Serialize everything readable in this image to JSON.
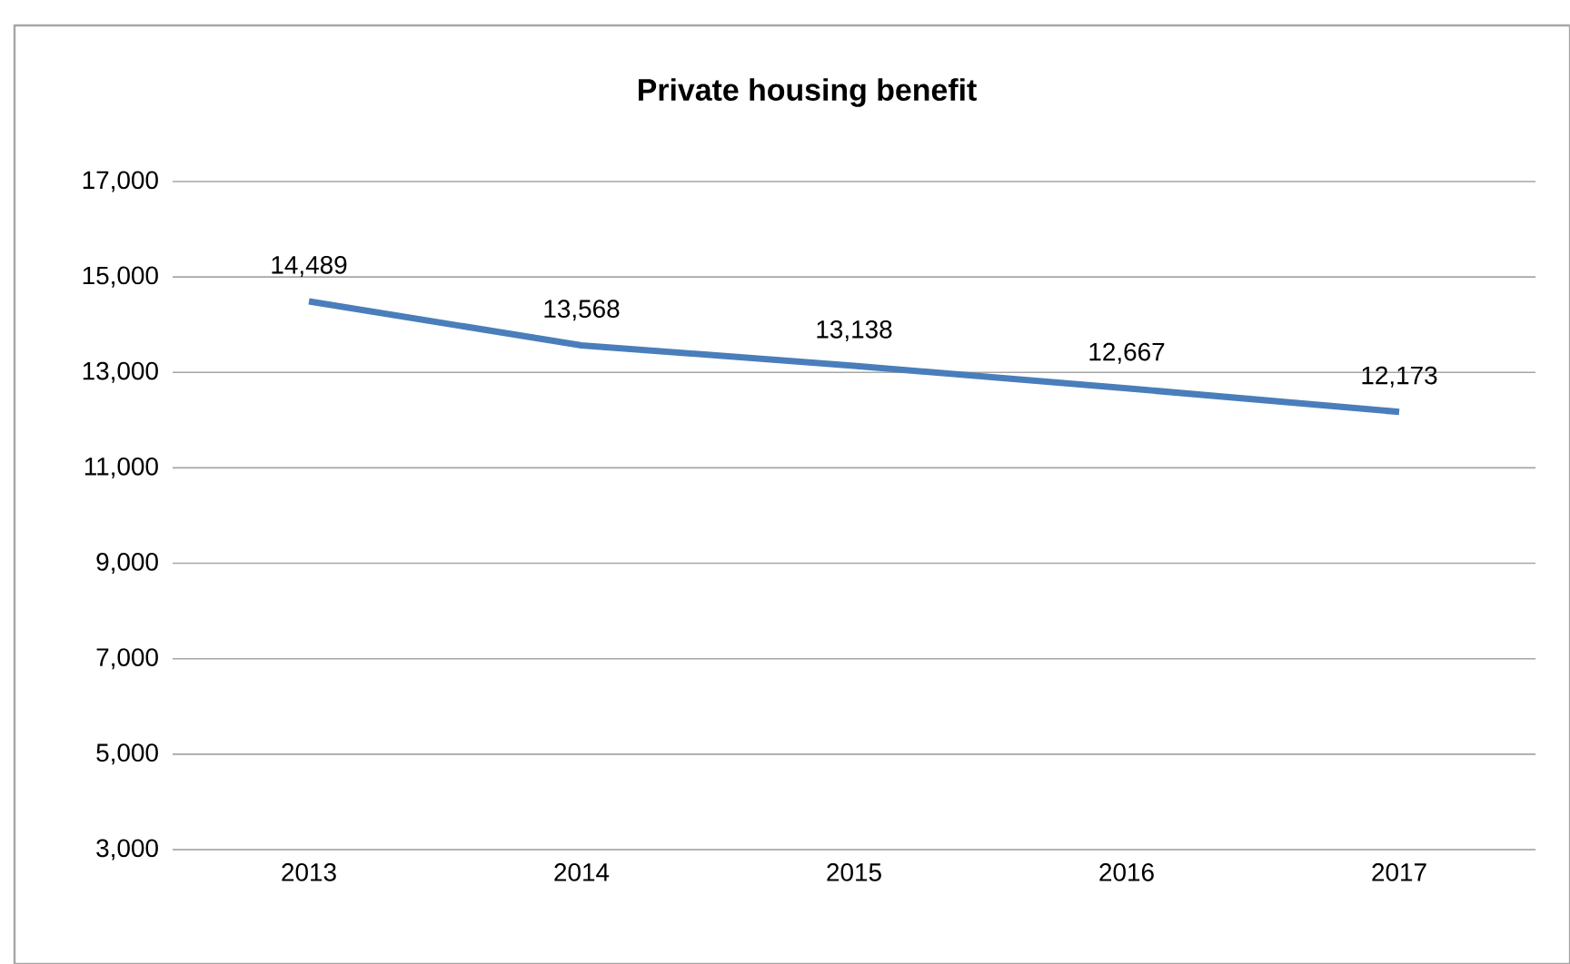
{
  "chart_data": {
    "type": "line",
    "title": "Private housing benefit",
    "categories": [
      "2013",
      "2014",
      "2015",
      "2016",
      "2017"
    ],
    "values": [
      14489,
      13568,
      13138,
      12667,
      12173
    ],
    "value_labels": [
      "14,489",
      "13,568",
      "13,138",
      "12,667",
      "12,173"
    ],
    "color": "#4a7ebb",
    "ylim": [
      3000,
      17000
    ],
    "yticks": [
      {
        "value": 3000,
        "label": "3,000"
      },
      {
        "value": 5000,
        "label": "5,000"
      },
      {
        "value": 7000,
        "label": "7,000"
      },
      {
        "value": 9000,
        "label": "9,000"
      },
      {
        "value": 11000,
        "label": "11,000"
      },
      {
        "value": 13000,
        "label": "13,000"
      },
      {
        "value": 15000,
        "label": "15,000"
      },
      {
        "value": 17000,
        "label": "17,000"
      }
    ],
    "grid": "y",
    "marker": "none",
    "line_style": "solid"
  }
}
